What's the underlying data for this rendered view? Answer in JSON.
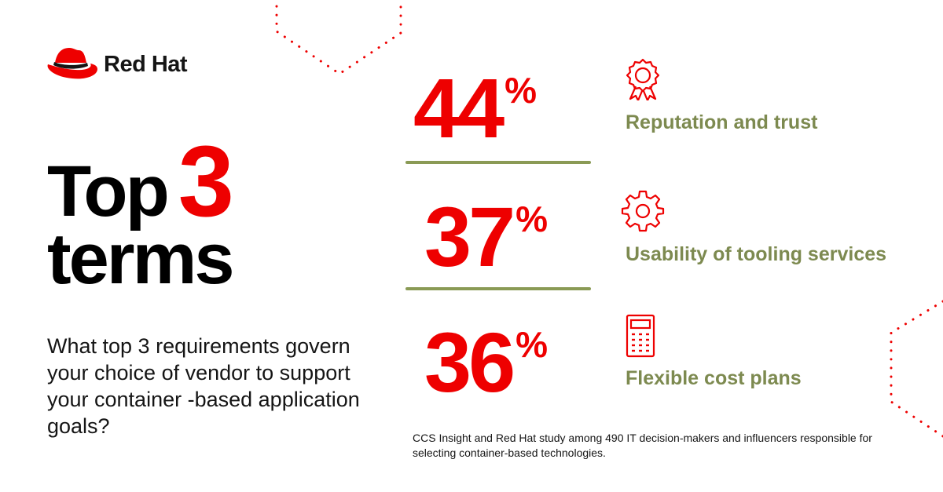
{
  "brand": {
    "name": "Red Hat",
    "accent_color": "#ee0000",
    "olive_color": "#7d8a50"
  },
  "headline": {
    "line1_word": "Top",
    "line1_number": "3",
    "line2": "terms"
  },
  "question": "What top 3 requirements govern your choice of vendor to support your container -based application goals?",
  "stats": [
    {
      "value": "44",
      "unit": "%",
      "label": "Reputation and trust",
      "icon": "award-ribbon-icon"
    },
    {
      "value": "37",
      "unit": "%",
      "label": "Usability of tooling services",
      "icon": "gear-icon"
    },
    {
      "value": "36",
      "unit": "%",
      "label": "Flexible cost plans",
      "icon": "calculator-icon"
    }
  ],
  "footnote": "CCS Insight and Red Hat study among 490 IT decision-makers and influencers responsible for selecting container-based technologies."
}
